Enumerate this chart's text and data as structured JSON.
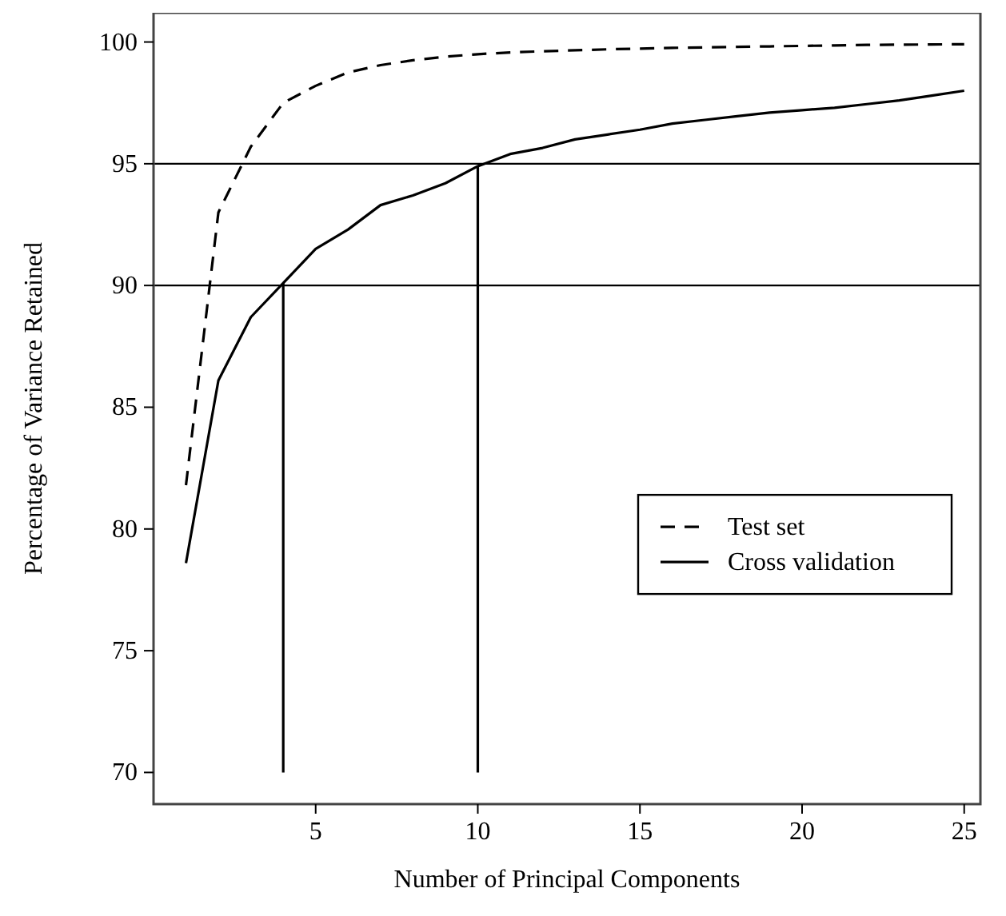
{
  "chart_data": {
    "type": "line",
    "xlabel": "Number of Principal Components",
    "ylabel": "Percentage of Variance Retained",
    "xlim": [
      0,
      25.5
    ],
    "ylim": [
      68.7,
      101.2
    ],
    "xticks": [
      5,
      10,
      15,
      20,
      25
    ],
    "yticks": [
      70,
      75,
      80,
      85,
      90,
      95,
      100
    ],
    "grid": false,
    "legend": "bottom right",
    "marker": "none",
    "series": [
      {
        "name": "Test set",
        "color": "#000000",
        "line_style": "dashed",
        "x": [
          1,
          2,
          3,
          4,
          5,
          6,
          7,
          8,
          9,
          10,
          11,
          12,
          13,
          14,
          15,
          16,
          17,
          18,
          19,
          20,
          21,
          22,
          23,
          24,
          25
        ],
        "values": [
          81.8,
          93.0,
          95.7,
          97.5,
          98.2,
          98.75,
          99.05,
          99.25,
          99.4,
          99.5,
          99.57,
          99.62,
          99.66,
          99.7,
          99.73,
          99.76,
          99.78,
          99.8,
          99.82,
          99.84,
          99.86,
          99.88,
          99.89,
          99.9,
          99.91
        ]
      },
      {
        "name": "Cross validation",
        "color": "#000000",
        "line_style": "solid",
        "x": [
          1,
          2,
          3,
          4,
          5,
          6,
          7,
          8,
          9,
          10,
          11,
          12,
          13,
          14,
          15,
          16,
          17,
          18,
          19,
          20,
          21,
          22,
          23,
          24,
          25
        ],
        "values": [
          78.6,
          86.1,
          88.7,
          90.1,
          91.5,
          92.3,
          93.3,
          93.7,
          94.2,
          94.9,
          95.4,
          95.65,
          96.0,
          96.2,
          96.4,
          96.65,
          96.8,
          96.95,
          97.1,
          97.2,
          97.3,
          97.45,
          97.6,
          97.8,
          98.0
        ]
      },
      {
        "type": "line",
        "color": "#000000",
        "line_style": "solid",
        "x": [
          4,
          4
        ],
        "values": [
          70,
          90.1
        ]
      },
      {
        "type": "line",
        "color": "#000000",
        "line_style": "solid",
        "x": [
          10,
          10
        ],
        "values": [
          70,
          94.9
        ]
      }
    ],
    "ref_lines": [
      {
        "axis": "y",
        "value": 90,
        "color": "#000000"
      },
      {
        "axis": "y",
        "value": 95,
        "color": "#000000"
      }
    ]
  }
}
